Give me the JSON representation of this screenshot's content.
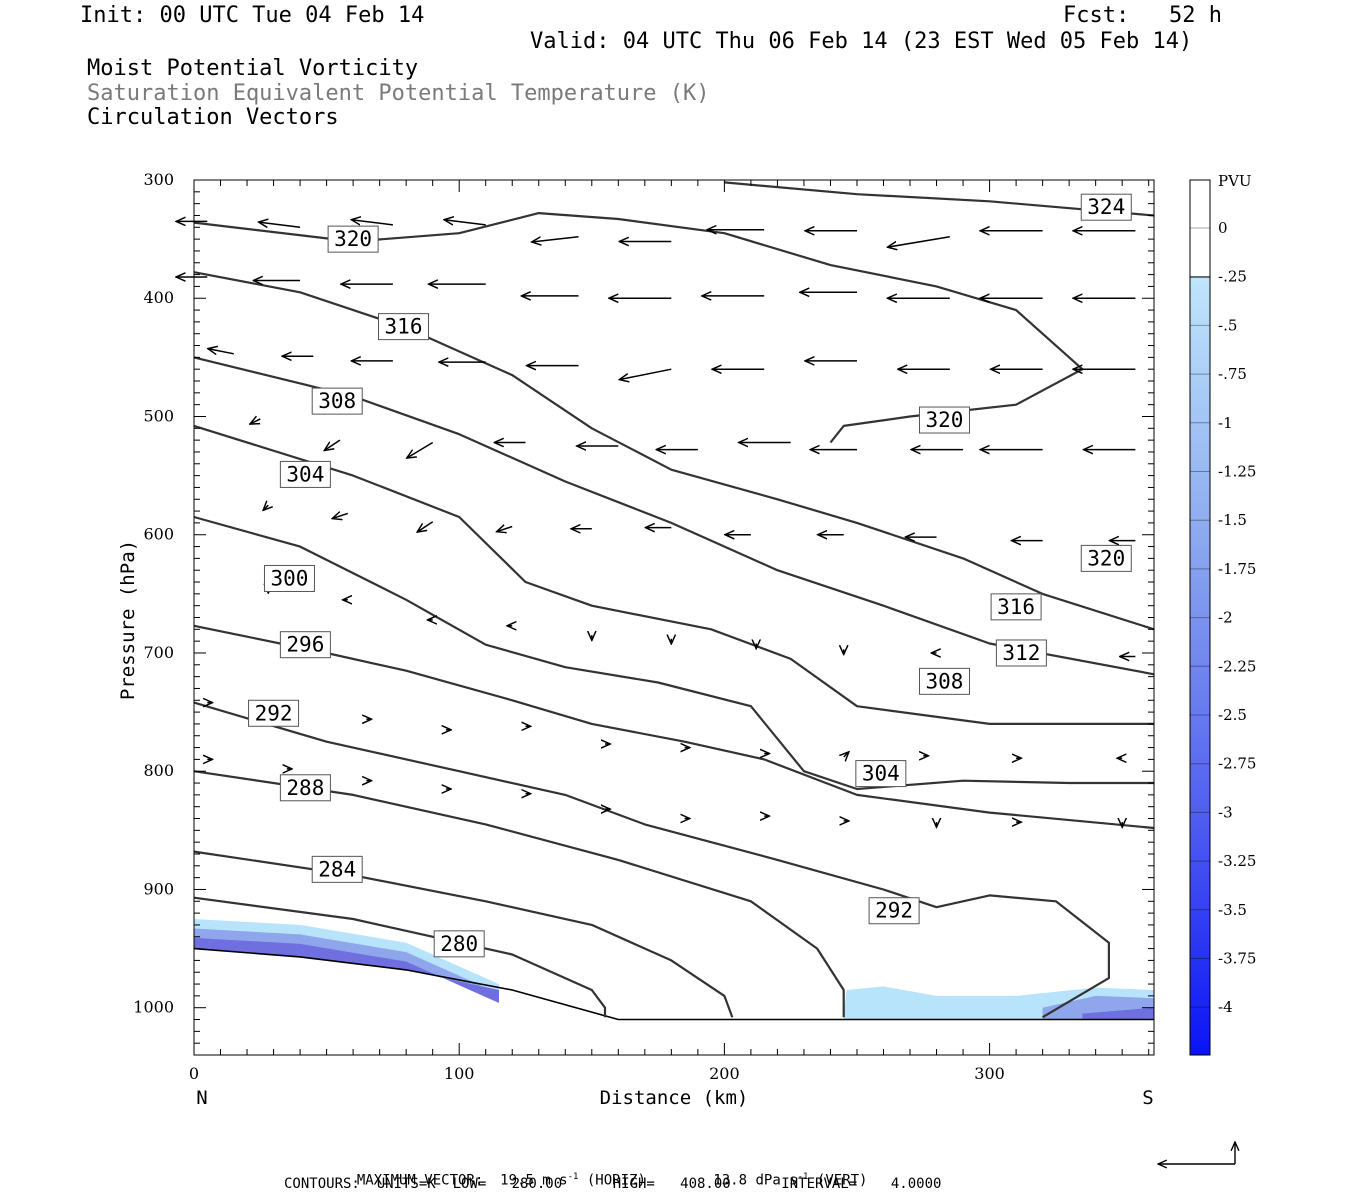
{
  "header": {
    "init": "Init: 00 UTC Tue 04 Feb 14",
    "fcst": "Fcst:   52 h",
    "valid": "Valid: 04 UTC Thu 06 Feb 14 (23 EST Wed 05 Feb 14)",
    "line1": "Moist Potential Vorticity",
    "line2": "Saturation Equivalent Potential Temperature (K)",
    "line3": "Circulation Vectors"
  },
  "footer": {
    "max_vector_label": "MAXIMUM VECTOR:",
    "horiz": "19.5 m s",
    "horiz_unit": "(HORIZ)",
    "vert": "13.8 dPa s",
    "vert_unit": "(VERT)",
    "exponent": "-1",
    "contours": "CONTOURS:  UNITS=K  LOW=   280.00      HIGH=   408.00      INTERVAL=    4.0000"
  },
  "colors": {
    "contour": "#333333",
    "vector": "#000000",
    "pv_light": "#b8e4fb",
    "pv_mid": "#8fa6ec",
    "pv_dark": "#6f6fe0"
  },
  "chart_data": {
    "type": "cross-section",
    "xlabel": "Distance (km)",
    "ylabel": "Pressure (hPa)",
    "xlim": [
      0,
      362
    ],
    "ylim": [
      1040,
      300
    ],
    "x_ticks": [
      0,
      100,
      200,
      300
    ],
    "y_ticks": [
      300,
      400,
      500,
      600,
      700,
      800,
      900,
      1000
    ],
    "x_end_labels": {
      "left": "N",
      "right": "S"
    },
    "ground_surface": [
      [
        0,
        950
      ],
      [
        40,
        957
      ],
      [
        80,
        968
      ],
      [
        120,
        985
      ],
      [
        160,
        1010
      ],
      [
        362,
        1010
      ]
    ],
    "theta_contours": [
      {
        "value": 280,
        "label_at": [
          100,
          946
        ],
        "points": [
          [
            0,
            907
          ],
          [
            60,
            925
          ],
          [
            120,
            955
          ],
          [
            150,
            985
          ],
          [
            155,
            1000
          ],
          [
            155,
            1008
          ]
        ]
      },
      {
        "value": 284,
        "label_at": [
          54,
          883
        ],
        "points": [
          [
            0,
            868
          ],
          [
            60,
            888
          ],
          [
            110,
            910
          ],
          [
            150,
            930
          ],
          [
            180,
            960
          ],
          [
            200,
            990
          ],
          [
            203,
            1008
          ]
        ]
      },
      {
        "value": 288,
        "label_at": [
          42,
          814
        ],
        "points": [
          [
            0,
            800
          ],
          [
            60,
            820
          ],
          [
            110,
            845
          ],
          [
            160,
            875
          ],
          [
            210,
            910
          ],
          [
            235,
            950
          ],
          [
            245,
            985
          ],
          [
            245,
            1008
          ]
        ]
      },
      {
        "value": 292,
        "label_at": [
          30,
          751
        ],
        "points": [
          [
            0,
            742
          ],
          [
            50,
            775
          ],
          [
            100,
            800
          ],
          [
            140,
            820
          ],
          [
            170,
            845
          ],
          [
            220,
            875
          ],
          [
            260,
            900
          ],
          [
            280,
            915
          ],
          [
            300,
            905
          ],
          [
            325,
            910
          ],
          [
            345,
            945
          ],
          [
            345,
            975
          ],
          [
            320,
            1008
          ]
        ]
      },
      {
        "value": 296,
        "label_at": [
          42,
          693
        ],
        "points": [
          [
            0,
            677
          ],
          [
            50,
            700
          ],
          [
            80,
            715
          ],
          [
            120,
            740
          ],
          [
            150,
            760
          ],
          [
            185,
            775
          ],
          [
            215,
            790
          ],
          [
            250,
            820
          ],
          [
            300,
            835
          ],
          [
            362,
            848
          ]
        ]
      },
      {
        "value": 300,
        "label_at": [
          36,
          637
        ],
        "points": [
          [
            0,
            585
          ],
          [
            40,
            610
          ],
          [
            80,
            655
          ],
          [
            110,
            693
          ],
          [
            140,
            712
          ],
          [
            175,
            725
          ],
          [
            210,
            745
          ],
          [
            230,
            800
          ],
          [
            250,
            815
          ],
          [
            290,
            808
          ],
          [
            330,
            810
          ],
          [
            362,
            810
          ]
        ]
      },
      {
        "value": 304,
        "label_at": [
          42,
          549
        ],
        "points": [
          [
            0,
            508
          ],
          [
            60,
            550
          ],
          [
            100,
            585
          ],
          [
            125,
            640
          ],
          [
            150,
            660
          ],
          [
            195,
            680
          ],
          [
            225,
            705
          ],
          [
            250,
            745
          ],
          [
            300,
            760
          ],
          [
            362,
            760
          ]
        ]
      },
      {
        "value": 308,
        "label_at": [
          54,
          487
        ],
        "points": [
          [
            0,
            450
          ],
          [
            60,
            483
          ],
          [
            100,
            515
          ],
          [
            140,
            555
          ],
          [
            180,
            590
          ],
          [
            220,
            630
          ],
          [
            260,
            660
          ],
          [
            300,
            692
          ],
          [
            362,
            718
          ]
        ]
      },
      {
        "value": 316,
        "label_at": [
          79,
          424
        ],
        "points": [
          [
            0,
            378
          ],
          [
            40,
            395
          ],
          [
            80,
            425
          ],
          [
            120,
            465
          ],
          [
            150,
            510
          ],
          [
            180,
            545
          ],
          [
            220,
            570
          ],
          [
            250,
            590
          ],
          [
            290,
            620
          ],
          [
            320,
            650
          ],
          [
            362,
            680
          ]
        ]
      },
      {
        "value": 320,
        "label_at": [
          60,
          350
        ],
        "points": [
          [
            0,
            336
          ],
          [
            60,
            352
          ],
          [
            100,
            345
          ],
          [
            130,
            328
          ],
          [
            160,
            333
          ],
          [
            200,
            345
          ],
          [
            240,
            372
          ],
          [
            280,
            390
          ],
          [
            310,
            410
          ],
          [
            335,
            460
          ],
          [
            310,
            490
          ],
          [
            270,
            500
          ],
          [
            245,
            508
          ],
          [
            240,
            522
          ]
        ]
      },
      {
        "value": 324,
        "label_at": [
          344,
          323
        ],
        "points": [
          [
            200,
            302
          ],
          [
            250,
            312
          ],
          [
            300,
            318
          ],
          [
            362,
            330
          ]
        ]
      }
    ],
    "contour_labels": [
      320,
      316,
      308,
      304,
      300,
      296,
      292,
      288,
      284,
      280,
      324,
      320,
      320,
      316,
      312,
      308,
      304,
      292
    ],
    "pv_shading": {
      "pvu_min": -4,
      "pvu_max": 0,
      "regions": [
        "near-surface 0-115 km",
        "near-surface 245-362 km"
      ]
    },
    "colorbar": {
      "title": "PVU",
      "labels": [
        "0",
        "-.25",
        "-.5",
        "-.75",
        "-1",
        "-1.25",
        "-1.5",
        "-1.75",
        "-2",
        "-2.25",
        "-2.5",
        "-2.75",
        "-3",
        "-3.25",
        "-3.5",
        "-3.75",
        "-4"
      ]
    },
    "vectors": [
      [
        5,
        335,
        -6,
        0
      ],
      [
        40,
        340,
        -8,
        -1
      ],
      [
        75,
        338,
        -8,
        -1
      ],
      [
        110,
        338,
        -8,
        -1
      ],
      [
        145,
        348,
        -9,
        1
      ],
      [
        180,
        352,
        -10,
        0
      ],
      [
        215,
        342,
        -11,
        0
      ],
      [
        250,
        343,
        -10,
        0
      ],
      [
        285,
        348,
        -12,
        2
      ],
      [
        320,
        343,
        -12,
        0
      ],
      [
        355,
        343,
        -12,
        0
      ],
      [
        5,
        382,
        -6,
        0
      ],
      [
        40,
        385,
        -9,
        0
      ],
      [
        75,
        388,
        -10,
        0
      ],
      [
        110,
        388,
        -11,
        0
      ],
      [
        145,
        398,
        -11,
        0
      ],
      [
        180,
        400,
        -12,
        0
      ],
      [
        215,
        398,
        -12,
        0
      ],
      [
        250,
        395,
        -11,
        0
      ],
      [
        285,
        400,
        -12,
        0
      ],
      [
        320,
        400,
        -12,
        0
      ],
      [
        355,
        400,
        -12,
        0
      ],
      [
        15,
        447,
        -5,
        -1
      ],
      [
        45,
        449,
        -6,
        0
      ],
      [
        75,
        453,
        -8,
        0
      ],
      [
        110,
        454,
        -9,
        0
      ],
      [
        145,
        457,
        -10,
        0
      ],
      [
        180,
        460,
        -10,
        2
      ],
      [
        215,
        460,
        -10,
        0
      ],
      [
        250,
        453,
        -10,
        0
      ],
      [
        285,
        460,
        -10,
        0
      ],
      [
        320,
        460,
        -10,
        0
      ],
      [
        355,
        460,
        -12,
        0
      ],
      [
        25,
        502,
        -2,
        1
      ],
      [
        55,
        520,
        -3,
        2
      ],
      [
        90,
        522,
        -5,
        3
      ],
      [
        125,
        522,
        -6,
        0
      ],
      [
        160,
        525,
        -8,
        0
      ],
      [
        190,
        528,
        -8,
        0
      ],
      [
        225,
        522,
        -10,
        0
      ],
      [
        250,
        528,
        -9,
        0
      ],
      [
        290,
        528,
        -10,
        0
      ],
      [
        320,
        528,
        -12,
        0
      ],
      [
        355,
        528,
        -10,
        0
      ],
      [
        28,
        575,
        -1,
        1
      ],
      [
        58,
        582,
        -3,
        1
      ],
      [
        90,
        589,
        -3,
        2
      ],
      [
        120,
        593,
        -3,
        1
      ],
      [
        150,
        595,
        -4,
        0
      ],
      [
        180,
        594,
        -5,
        0
      ],
      [
        210,
        600,
        -5,
        0
      ],
      [
        245,
        600,
        -5,
        0
      ],
      [
        280,
        602,
        -6,
        0
      ],
      [
        320,
        605,
        -6,
        0
      ],
      [
        355,
        605,
        -5,
        0
      ],
      [
        28,
        645,
        0,
        1
      ],
      [
        58,
        655,
        -1,
        0
      ],
      [
        90,
        672,
        -1,
        0
      ],
      [
        120,
        677,
        -1,
        0
      ],
      [
        150,
        685,
        0,
        1
      ],
      [
        180,
        688,
        0,
        1
      ],
      [
        212,
        692,
        0,
        1
      ],
      [
        245,
        697,
        0,
        1
      ],
      [
        280,
        700,
        -1,
        0
      ],
      [
        320,
        703,
        -2,
        0
      ],
      [
        355,
        703,
        -3,
        0
      ],
      [
        5,
        742,
        1,
        0
      ],
      [
        35,
        748,
        1,
        0
      ],
      [
        65,
        756,
        1,
        0
      ],
      [
        95,
        765,
        1,
        0
      ],
      [
        125,
        762,
        1,
        0
      ],
      [
        155,
        777,
        1,
        0
      ],
      [
        185,
        780,
        1,
        0
      ],
      [
        215,
        785,
        1,
        0
      ],
      [
        245,
        788,
        1,
        -1
      ],
      [
        275,
        787,
        1,
        0
      ],
      [
        310,
        789,
        1,
        0
      ],
      [
        350,
        789,
        -1,
        0
      ],
      [
        5,
        790,
        1,
        0
      ],
      [
        35,
        798,
        1,
        0
      ],
      [
        65,
        808,
        1,
        0
      ],
      [
        95,
        815,
        1,
        0
      ],
      [
        125,
        819,
        1,
        0
      ],
      [
        155,
        832,
        1,
        0
      ],
      [
        185,
        840,
        1,
        0
      ],
      [
        215,
        838,
        1,
        0
      ],
      [
        245,
        842,
        1,
        0
      ],
      [
        280,
        843,
        0,
        1
      ],
      [
        310,
        843,
        1,
        0
      ],
      [
        350,
        843,
        0,
        1
      ]
    ]
  }
}
